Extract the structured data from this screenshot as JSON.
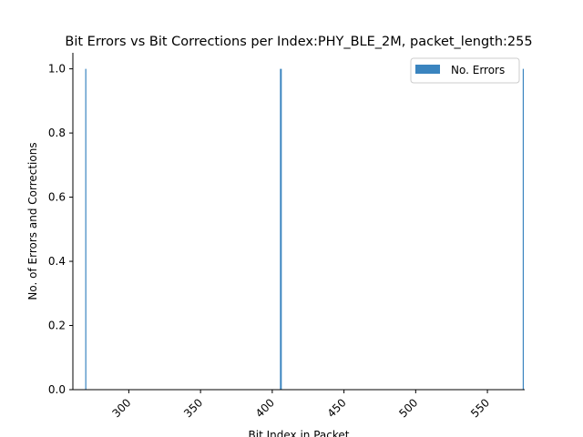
{
  "chart_data": {
    "type": "bar",
    "title": "Bit Errors vs Bit Corrections per Index:PHY_BLE_2M, packet_length:255",
    "xlabel": "Bit Index in Packet",
    "ylabel": "No. of Errors and Corrections",
    "xlim": [
      261,
      576
    ],
    "ylim": [
      0,
      1.05
    ],
    "xticks": [
      300,
      350,
      400,
      450,
      500,
      550
    ],
    "yticks": [
      0.0,
      0.2,
      0.4,
      0.6,
      0.8,
      1.0
    ],
    "xtick_labels": [
      "300",
      "350",
      "400",
      "450",
      "500",
      "550"
    ],
    "ytick_labels": [
      "0.0",
      "0.2",
      "0.4",
      "0.6",
      "0.8",
      "1.0"
    ],
    "series": [
      {
        "name": "No. Errors",
        "color": "#3a84bf",
        "x": [
          270,
          406,
          575
        ],
        "values": [
          1,
          1,
          1
        ]
      }
    ],
    "legend": "top-right",
    "grid": false
  }
}
